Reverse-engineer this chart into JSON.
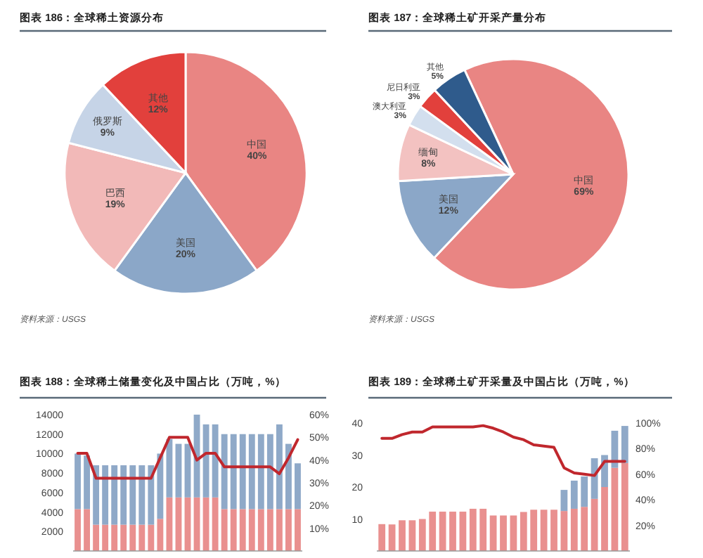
{
  "chart_data": [
    {
      "type": "pie",
      "title": "图表 186：全球稀土资源分布",
      "categories": [
        "中国",
        "美国",
        "巴西",
        "俄罗斯",
        "其他"
      ],
      "values": [
        40,
        20,
        19,
        9,
        12
      ],
      "value_labels": [
        "40%",
        "20%",
        "19%",
        "9%",
        "12%"
      ],
      "colors": [
        "#e98583",
        "#8ba7c8",
        "#f2b9b8",
        "#c6d4e7",
        "#e2403c"
      ],
      "annotations": [
        "资料来源：USGS"
      ]
    },
    {
      "type": "pie",
      "title": "图表 187：全球稀土矿开采产量分布",
      "categories": [
        "中国",
        "美国",
        "缅甸",
        "澳大利亚",
        "尼日利亚",
        "其他"
      ],
      "values": [
        69,
        12,
        8,
        3,
        3,
        5
      ],
      "value_labels": [
        "69%",
        "12%",
        "8%",
        "3%",
        "3%",
        "5%"
      ],
      "colors": [
        "#e98583",
        "#8ba7c8",
        "#f3c2c1",
        "#d3dfee",
        "#e2403c",
        "#2f5b8c"
      ],
      "annotations": [
        "资料来源：USGS"
      ]
    },
    {
      "type": "bar",
      "stacked": true,
      "title": "图表 188：全球稀土储量变化及中国占比（万吨，%）",
      "categories": [
        null,
        null,
        null,
        null,
        null,
        null,
        null,
        null,
        null,
        null,
        null,
        null,
        null,
        null,
        null,
        null,
        null,
        null,
        null,
        null,
        null,
        null,
        null,
        null,
        null
      ],
      "series": [
        {
          "color": "#e9908f",
          "values": [
            4300,
            4300,
            2700,
            2700,
            2700,
            2700,
            2700,
            2700,
            2700,
            3300,
            5500,
            5500,
            5500,
            5500,
            5500,
            5500,
            4300,
            4300,
            4300,
            4300,
            4300,
            4300,
            4300,
            4300,
            4300
          ]
        },
        {
          "color": "#8fa9c8",
          "values": [
            5700,
            5500,
            6100,
            6100,
            6100,
            6100,
            6100,
            6100,
            6100,
            6700,
            6000,
            5500,
            5500,
            8500,
            7500,
            7500,
            7700,
            7700,
            7700,
            7700,
            7700,
            7700,
            8700,
            6700,
            4700
          ]
        },
        {
          "type": "line",
          "axis": "y2",
          "color": "#c0272d",
          "values": [
            43,
            43,
            32,
            32,
            32,
            32,
            32,
            32,
            32,
            41,
            50,
            50,
            50,
            40,
            43,
            43,
            37,
            37,
            37,
            37,
            37,
            37,
            34,
            41,
            49
          ]
        }
      ],
      "ylim": [
        0,
        14000
      ],
      "yticks": [
        2000,
        4000,
        6000,
        8000,
        10000,
        12000,
        14000
      ],
      "y2lim": [
        0,
        60
      ],
      "y2ticks": [
        {
          "value": 10,
          "label": "10%"
        },
        {
          "value": 20,
          "label": "20%"
        },
        {
          "value": 30,
          "label": "30%"
        },
        {
          "value": 40,
          "label": "40%"
        },
        {
          "value": 50,
          "label": "50%"
        },
        {
          "value": 60,
          "label": "60%"
        }
      ]
    },
    {
      "type": "bar",
      "stacked": true,
      "title": "图表 189：全球稀土矿开采量及中国占比（万吨，%）",
      "categories": [
        null,
        null,
        null,
        null,
        null,
        null,
        null,
        null,
        null,
        null,
        null,
        null,
        null,
        null,
        null,
        null,
        null,
        null,
        null,
        null,
        null,
        null,
        null,
        null,
        null
      ],
      "series": [
        {
          "color": "#e9908f",
          "values": [
            8.4,
            8.3,
            9.6,
            9.6,
            10,
            12.3,
            12.3,
            12.3,
            12.3,
            13.2,
            13.2,
            11.1,
            11.1,
            11.1,
            12.2,
            12.9,
            12.9,
            12.9,
            12.5,
            13.2,
            13.8,
            16.3,
            20,
            26,
            27.5
          ]
        },
        {
          "color": "#8fa9c8",
          "values": [
            null,
            null,
            null,
            null,
            null,
            null,
            null,
            null,
            null,
            null,
            null,
            null,
            null,
            null,
            null,
            null,
            null,
            null,
            6.6,
            8.8,
            9.5,
            12.7,
            10,
            11.6,
            11.6
          ]
        },
        {
          "type": "line",
          "axis": "y2",
          "color": "#c0272d",
          "values": [
            88,
            88,
            91,
            93,
            93,
            97,
            97,
            97,
            97,
            97,
            98,
            96,
            93,
            89,
            87,
            83,
            82,
            81,
            65,
            61,
            60,
            59,
            70,
            70,
            70
          ]
        }
      ],
      "ylim": [
        0,
        40
      ],
      "yticks": [
        10,
        20,
        30,
        40
      ],
      "y2lim": [
        0,
        100
      ],
      "y2ticks": [
        {
          "value": 20,
          "label": "20%"
        },
        {
          "value": 40,
          "label": "40%"
        },
        {
          "value": 60,
          "label": "60%"
        },
        {
          "value": 80,
          "label": "80%"
        },
        {
          "value": 100,
          "label": "100%"
        }
      ]
    }
  ]
}
